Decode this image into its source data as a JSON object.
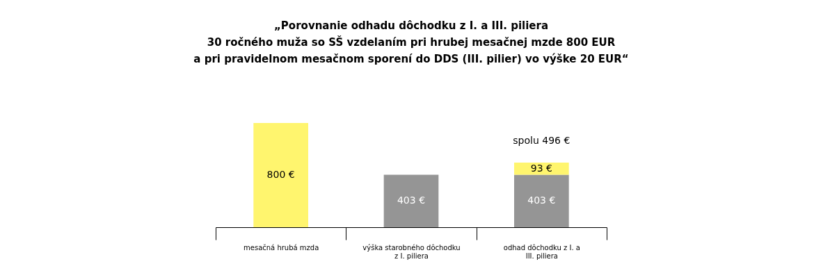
{
  "chart_data": {
    "type": "bar",
    "stacked": true,
    "title": "„Porovnanie odhadu dôchodku z I. a III. piliera\n30 ročného muža so SŠ vzdelaním pri hrubej mesačnej mzde 800 EUR\na pri pravidelnom mesačnom sporení do DDS (III. pilier) vo výške 20 EUR“",
    "categories": [
      "mesačná hrubá mzda",
      "výška starobného dôchodku z I. piliera",
      "odhad dôchodku z I. a III. piliera"
    ],
    "series": [
      {
        "color": "#959595",
        "values": [
          null,
          403,
          403
        ],
        "value_labels": [
          null,
          "403 €",
          "403 €"
        ]
      },
      {
        "color": "#fff56e",
        "values": [
          800,
          null,
          93
        ],
        "value_labels": [
          "800 €",
          null,
          "93 €"
        ]
      }
    ],
    "totals": [
      null,
      null,
      "spolu 496 €"
    ],
    "tick_labels": "x",
    "grid": false
  }
}
